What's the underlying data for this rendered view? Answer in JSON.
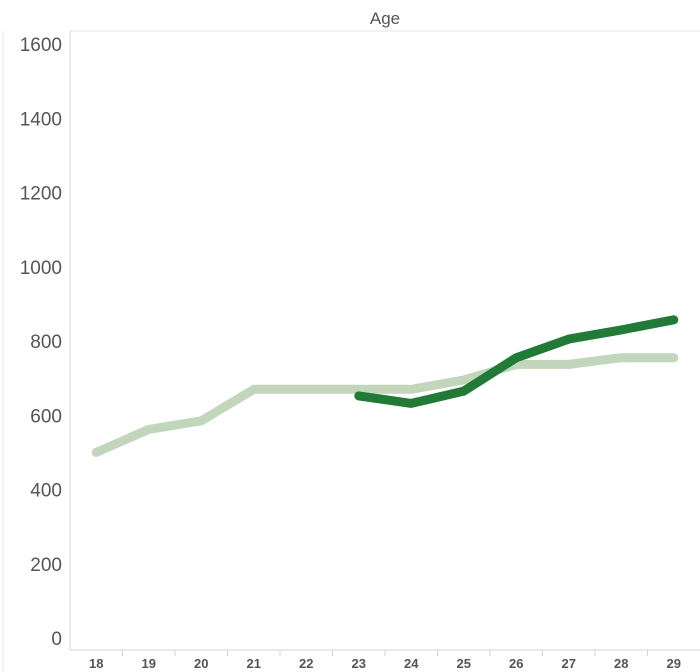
{
  "chart_data": {
    "type": "line",
    "title": "",
    "column_header": "Age",
    "xlabel": "",
    "ylabel": "",
    "categories": [
      "18",
      "19",
      "20",
      "21",
      "22",
      "23",
      "24",
      "25",
      "26",
      "27",
      "28",
      "29"
    ],
    "ylim": [
      0,
      1600
    ],
    "yticks": [
      0,
      200,
      400,
      600,
      800,
      1000,
      1200,
      1400,
      1600
    ],
    "grid": false,
    "series": [
      {
        "color": "#c2d6bc",
        "values": [
          500,
          562,
          585,
          670,
          670,
          670,
          670,
          695,
          737,
          737,
          755,
          755
        ]
      },
      {
        "color": "#217a35",
        "values": [
          null,
          null,
          null,
          null,
          null,
          652,
          632,
          665,
          755,
          805,
          830,
          857
        ]
      }
    ]
  }
}
